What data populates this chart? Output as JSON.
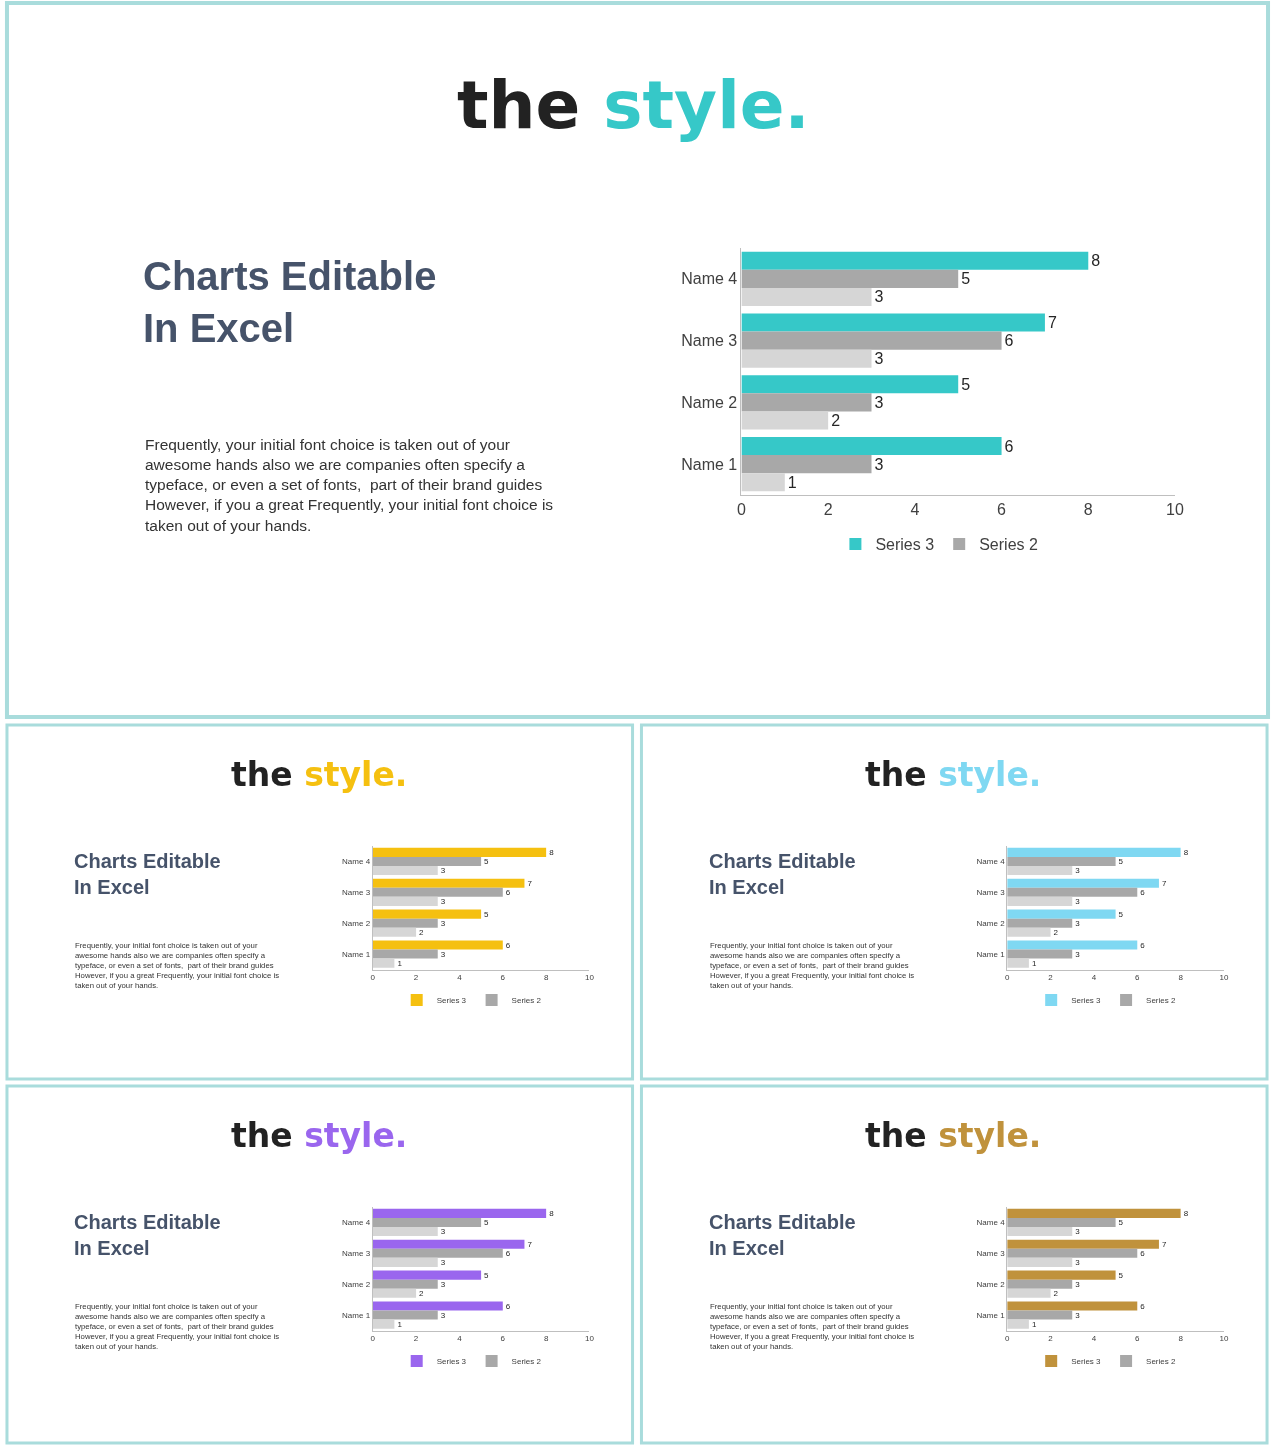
{
  "chart_data": [
    {
      "type": "other",
      "title": "Charts Editable\nIn Excel",
      "annotations": [
        "Frequently, your initial font choice is taken out of your\nawesome hands also we are companies often specify a\ntypeface, or even a set of fonts,  part of their brand guides\nHowever, if you a great Frequently, your initial font choice is\ntaken out of your hands."
      ]
    },
    {
      "type": "bar",
      "orientation": "horizontal",
      "title": "the style.",
      "categories": [
        "Name 4",
        "Name 3",
        "Name 2",
        "Name 1"
      ],
      "series": [
        {
          "name": "Series 3",
          "color": "#36c8c8",
          "values": [
            8,
            7,
            5,
            6
          ]
        },
        {
          "name": "Series 2",
          "color": "#a8a8a8",
          "values": [
            5,
            6,
            3,
            3
          ]
        },
        {
          "color": "#d6d6d6",
          "values": [
            3,
            3,
            2,
            1
          ]
        }
      ],
      "xlim": [
        0,
        10
      ],
      "xticks": [
        0,
        2,
        4,
        6,
        8,
        10
      ],
      "data_labels": true,
      "legend": "bottom"
    },
    {
      "type": "other",
      "title": "Charts Editable\nIn Excel",
      "annotations": [
        "Frequently, your initial font choice is taken out of your\nawesome hands also we are companies often specify a\ntypeface, or even a set of fonts,  part of their brand guides\nHowever, if you a great Frequently, your initial font choice is\ntaken out of your hands."
      ]
    },
    {
      "type": "bar",
      "orientation": "horizontal",
      "title": "the style.",
      "categories": [
        "Name 4",
        "Name 3",
        "Name 2",
        "Name 1"
      ],
      "series": [
        {
          "name": "Series 3",
          "color": "#f5c010",
          "values": [
            8,
            7,
            5,
            6
          ]
        },
        {
          "name": "Series 2",
          "color": "#a8a8a8",
          "values": [
            5,
            6,
            3,
            3
          ]
        },
        {
          "color": "#d6d6d6",
          "values": [
            3,
            3,
            2,
            1
          ]
        }
      ],
      "xlim": [
        0,
        10
      ],
      "xticks": [
        0,
        2,
        4,
        6,
        8,
        10
      ],
      "data_labels": true,
      "legend": "bottom"
    },
    {
      "type": "other",
      "title": "Charts Editable\nIn Excel",
      "annotations": [
        "Frequently, your initial font choice is taken out of your\nawesome hands also we are companies often specify a\ntypeface, or even a set of fonts,  part of their brand guides\nHowever, if you a great Frequently, your initial font choice is\ntaken out of your hands."
      ]
    },
    {
      "type": "bar",
      "orientation": "horizontal",
      "title": "the style.",
      "categories": [
        "Name 4",
        "Name 3",
        "Name 2",
        "Name 1"
      ],
      "series": [
        {
          "name": "Series 3",
          "color": "#7fd8f2",
          "values": [
            8,
            7,
            5,
            6
          ]
        },
        {
          "name": "Series 2",
          "color": "#a8a8a8",
          "values": [
            5,
            6,
            3,
            3
          ]
        },
        {
          "color": "#d6d6d6",
          "values": [
            3,
            3,
            2,
            1
          ]
        }
      ],
      "xlim": [
        0,
        10
      ],
      "xticks": [
        0,
        2,
        4,
        6,
        8,
        10
      ],
      "data_labels": true,
      "legend": "bottom"
    },
    {
      "type": "other",
      "title": "Charts Editable\nIn Excel",
      "annotations": [
        "Frequently, your initial font choice is taken out of your\nawesome hands also we are companies often specify a\ntypeface, or even a set of fonts,  part of their brand guides\nHowever, if you a great Frequently, your initial font choice is\ntaken out of your hands."
      ]
    },
    {
      "type": "bar",
      "orientation": "horizontal",
      "title": "the style.",
      "categories": [
        "Name 4",
        "Name 3",
        "Name 2",
        "Name 1"
      ],
      "series": [
        {
          "name": "Series 3",
          "color": "#9a66ee",
          "values": [
            8,
            7,
            5,
            6
          ]
        },
        {
          "name": "Series 2",
          "color": "#a8a8a8",
          "values": [
            5,
            6,
            3,
            3
          ]
        },
        {
          "color": "#d6d6d6",
          "values": [
            3,
            3,
            2,
            1
          ]
        }
      ],
      "xlim": [
        0,
        10
      ],
      "xticks": [
        0,
        2,
        4,
        6,
        8,
        10
      ],
      "data_labels": true,
      "legend": "bottom"
    },
    {
      "type": "other",
      "title": "Charts Editable\nIn Excel",
      "annotations": [
        "Frequently, your initial font choice is taken out of your\nawesome hands also we are companies often specify a\ntypeface, or even a set of fonts,  part of their brand guides\nHowever, if you a great Frequently, your initial font choice is\ntaken out of your hands."
      ]
    },
    {
      "type": "bar",
      "orientation": "horizontal",
      "title": "the style.",
      "categories": [
        "Name 4",
        "Name 3",
        "Name 2",
        "Name 1"
      ],
      "series": [
        {
          "name": "Series 3",
          "color": "#c0923c",
          "values": [
            8,
            7,
            5,
            6
          ]
        },
        {
          "name": "Series 2",
          "color": "#a8a8a8",
          "values": [
            5,
            6,
            3,
            3
          ]
        },
        {
          "color": "#d6d6d6",
          "values": [
            3,
            3,
            2,
            1
          ]
        }
      ],
      "xlim": [
        0,
        10
      ],
      "xticks": [
        0,
        2,
        4,
        6,
        8,
        10
      ],
      "data_labels": true,
      "legend": "bottom"
    }
  ]
}
